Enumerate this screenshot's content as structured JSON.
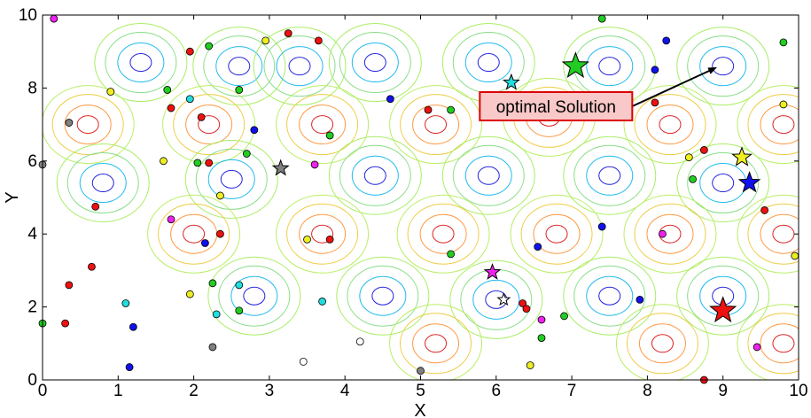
{
  "chart_data": {
    "type": "scatter",
    "title": "",
    "xlabel": "X",
    "ylabel": "Y",
    "xlim": [
      0,
      10
    ],
    "ylim": [
      0,
      10
    ],
    "xticks": [
      "0",
      "1",
      "2",
      "3",
      "4",
      "5",
      "6",
      "7",
      "8",
      "9",
      "10"
    ],
    "yticks": [
      "0",
      "2",
      "4",
      "6",
      "8",
      "10"
    ],
    "grid": false,
    "background": "contour-map",
    "annotation": {
      "text": "optimal Solution",
      "arrow_from": [
        7.8,
        7.5
      ],
      "arrow_to": [
        8.9,
        8.55
      ],
      "box_fill": "#f9c8c8",
      "box_edge": "#dd0000"
    },
    "contour_centers": [
      {
        "x": 1.3,
        "y": 8.7,
        "level": "low"
      },
      {
        "x": 2.6,
        "y": 8.6,
        "level": "low"
      },
      {
        "x": 3.4,
        "y": 8.6,
        "level": "low"
      },
      {
        "x": 4.4,
        "y": 8.7,
        "level": "low"
      },
      {
        "x": 5.9,
        "y": 8.7,
        "level": "low"
      },
      {
        "x": 7.5,
        "y": 8.6,
        "level": "low"
      },
      {
        "x": 9.0,
        "y": 8.6,
        "level": "low"
      },
      {
        "x": 0.6,
        "y": 7.0,
        "level": "high"
      },
      {
        "x": 2.2,
        "y": 7.0,
        "level": "high"
      },
      {
        "x": 3.7,
        "y": 7.0,
        "level": "high"
      },
      {
        "x": 5.2,
        "y": 7.0,
        "level": "high"
      },
      {
        "x": 6.7,
        "y": 7.2,
        "level": "high"
      },
      {
        "x": 8.3,
        "y": 7.0,
        "level": "high"
      },
      {
        "x": 9.8,
        "y": 7.0,
        "level": "high"
      },
      {
        "x": 0.8,
        "y": 5.4,
        "level": "low"
      },
      {
        "x": 2.5,
        "y": 5.5,
        "level": "low"
      },
      {
        "x": 4.4,
        "y": 5.6,
        "level": "low"
      },
      {
        "x": 5.9,
        "y": 5.6,
        "level": "low"
      },
      {
        "x": 7.5,
        "y": 5.6,
        "level": "low"
      },
      {
        "x": 9.0,
        "y": 5.4,
        "level": "low"
      },
      {
        "x": 2.0,
        "y": 4.0,
        "level": "high"
      },
      {
        "x": 3.7,
        "y": 4.0,
        "level": "high"
      },
      {
        "x": 5.3,
        "y": 4.0,
        "level": "high"
      },
      {
        "x": 6.8,
        "y": 4.0,
        "level": "high"
      },
      {
        "x": 8.3,
        "y": 4.0,
        "level": "high"
      },
      {
        "x": 9.8,
        "y": 4.0,
        "level": "high"
      },
      {
        "x": 2.8,
        "y": 2.3,
        "level": "low"
      },
      {
        "x": 4.5,
        "y": 2.3,
        "level": "low"
      },
      {
        "x": 6.0,
        "y": 2.2,
        "level": "low"
      },
      {
        "x": 7.5,
        "y": 2.3,
        "level": "low"
      },
      {
        "x": 9.0,
        "y": 2.3,
        "level": "low"
      },
      {
        "x": 5.2,
        "y": 1.0,
        "level": "high"
      },
      {
        "x": 8.2,
        "y": 1.0,
        "level": "high"
      },
      {
        "x": 9.8,
        "y": 1.0,
        "level": "high"
      }
    ],
    "stars": [
      {
        "x": 7.05,
        "y": 8.6,
        "color": "#22cc22",
        "size": 15
      },
      {
        "x": 6.2,
        "y": 8.15,
        "color": "#22dddd",
        "size": 9
      },
      {
        "x": 3.15,
        "y": 5.8,
        "color": "#808080",
        "size": 9
      },
      {
        "x": 9.25,
        "y": 6.1,
        "color": "#eeee22",
        "size": 11
      },
      {
        "x": 9.35,
        "y": 5.4,
        "color": "#1111ee",
        "size": 12
      },
      {
        "x": 5.95,
        "y": 2.95,
        "color": "#ee22ee",
        "size": 9
      },
      {
        "x": 6.1,
        "y": 2.2,
        "color": "#ffffff",
        "size": 7
      },
      {
        "x": 9.0,
        "y": 1.9,
        "color": "#ee1111",
        "size": 15
      }
    ],
    "points": [
      {
        "x": 0.15,
        "y": 9.9,
        "color": "#ee22ee"
      },
      {
        "x": 1.95,
        "y": 9.0,
        "color": "#ee1111"
      },
      {
        "x": 2.2,
        "y": 9.15,
        "color": "#22cc22"
      },
      {
        "x": 2.95,
        "y": 9.3,
        "color": "#eeee22"
      },
      {
        "x": 3.25,
        "y": 9.5,
        "color": "#ee1111"
      },
      {
        "x": 3.65,
        "y": 9.3,
        "color": "#ee1111"
      },
      {
        "x": 7.4,
        "y": 9.9,
        "color": "#22cc22"
      },
      {
        "x": 8.25,
        "y": 9.3,
        "color": "#1111ee"
      },
      {
        "x": 9.8,
        "y": 9.25,
        "color": "#22cc22"
      },
      {
        "x": 0.9,
        "y": 7.9,
        "color": "#eeee22"
      },
      {
        "x": 1.65,
        "y": 7.95,
        "color": "#22cc22"
      },
      {
        "x": 1.95,
        "y": 7.7,
        "color": "#22dddd"
      },
      {
        "x": 2.6,
        "y": 7.95,
        "color": "#22cc22"
      },
      {
        "x": 8.1,
        "y": 8.5,
        "color": "#1111ee"
      },
      {
        "x": 0.35,
        "y": 7.05,
        "color": "#808080"
      },
      {
        "x": 1.7,
        "y": 7.45,
        "color": "#ee1111"
      },
      {
        "x": 2.1,
        "y": 7.2,
        "color": "#ee1111"
      },
      {
        "x": 2.8,
        "y": 6.85,
        "color": "#1111ee"
      },
      {
        "x": 3.8,
        "y": 6.7,
        "color": "#22cc22"
      },
      {
        "x": 4.6,
        "y": 7.7,
        "color": "#1111ee"
      },
      {
        "x": 5.1,
        "y": 7.4,
        "color": "#ee1111"
      },
      {
        "x": 5.4,
        "y": 7.4,
        "color": "#22cc22"
      },
      {
        "x": 8.1,
        "y": 7.6,
        "color": "#ee1111"
      },
      {
        "x": 9.8,
        "y": 7.55,
        "color": "#eeee22"
      },
      {
        "x": 0.0,
        "y": 5.9,
        "color": "#808080"
      },
      {
        "x": 1.6,
        "y": 6.0,
        "color": "#eeee22"
      },
      {
        "x": 2.05,
        "y": 5.95,
        "color": "#22cc22"
      },
      {
        "x": 2.2,
        "y": 5.95,
        "color": "#ee1111"
      },
      {
        "x": 2.7,
        "y": 6.2,
        "color": "#22cc22"
      },
      {
        "x": 3.6,
        "y": 5.9,
        "color": "#ee22ee"
      },
      {
        "x": 2.35,
        "y": 5.05,
        "color": "#eeee22"
      },
      {
        "x": 8.55,
        "y": 6.1,
        "color": "#eeee22"
      },
      {
        "x": 8.75,
        "y": 6.3,
        "color": "#ee1111"
      },
      {
        "x": 8.6,
        "y": 5.5,
        "color": "#22cc22"
      },
      {
        "x": 0.7,
        "y": 4.75,
        "color": "#ee1111"
      },
      {
        "x": 1.7,
        "y": 4.4,
        "color": "#ee22ee"
      },
      {
        "x": 2.15,
        "y": 3.75,
        "color": "#1111ee"
      },
      {
        "x": 2.35,
        "y": 4.0,
        "color": "#ee1111"
      },
      {
        "x": 3.5,
        "y": 3.85,
        "color": "#eeee22"
      },
      {
        "x": 3.8,
        "y": 3.85,
        "color": "#ee1111"
      },
      {
        "x": 5.4,
        "y": 3.45,
        "color": "#22cc22"
      },
      {
        "x": 6.55,
        "y": 3.65,
        "color": "#1111ee"
      },
      {
        "x": 7.4,
        "y": 4.2,
        "color": "#1111ee"
      },
      {
        "x": 8.2,
        "y": 4.0,
        "color": "#ee22ee"
      },
      {
        "x": 9.55,
        "y": 4.65,
        "color": "#ee1111"
      },
      {
        "x": 9.95,
        "y": 3.4,
        "color": "#eeee22"
      },
      {
        "x": 0.65,
        "y": 3.1,
        "color": "#ee1111"
      },
      {
        "x": 0.35,
        "y": 2.6,
        "color": "#ee1111"
      },
      {
        "x": 1.1,
        "y": 2.1,
        "color": "#22dddd"
      },
      {
        "x": 1.95,
        "y": 2.35,
        "color": "#eeee22"
      },
      {
        "x": 2.25,
        "y": 2.65,
        "color": "#22cc22"
      },
      {
        "x": 2.6,
        "y": 2.6,
        "color": "#22dddd"
      },
      {
        "x": 2.3,
        "y": 1.8,
        "color": "#22dddd"
      },
      {
        "x": 2.6,
        "y": 1.9,
        "color": "#22cc22"
      },
      {
        "x": 3.7,
        "y": 2.15,
        "color": "#22dddd"
      },
      {
        "x": 6.35,
        "y": 2.1,
        "color": "#ee1111"
      },
      {
        "x": 6.4,
        "y": 1.95,
        "color": "#ee1111"
      },
      {
        "x": 6.6,
        "y": 1.65,
        "color": "#ee22ee"
      },
      {
        "x": 6.9,
        "y": 1.75,
        "color": "#22cc22"
      },
      {
        "x": 7.9,
        "y": 2.2,
        "color": "#1111ee"
      },
      {
        "x": 0.0,
        "y": 1.55,
        "color": "#22cc22"
      },
      {
        "x": 0.3,
        "y": 1.55,
        "color": "#ee1111"
      },
      {
        "x": 1.2,
        "y": 1.45,
        "color": "#1111ee"
      },
      {
        "x": 2.25,
        "y": 0.9,
        "color": "#808080"
      },
      {
        "x": 4.2,
        "y": 1.05,
        "color": "#ffffff"
      },
      {
        "x": 3.45,
        "y": 0.5,
        "color": "#ffffff"
      },
      {
        "x": 1.15,
        "y": 0.35,
        "color": "#1111ee"
      },
      {
        "x": 5.0,
        "y": 0.25,
        "color": "#808080"
      },
      {
        "x": 6.6,
        "y": 1.15,
        "color": "#22cc22"
      },
      {
        "x": 6.45,
        "y": 0.4,
        "color": "#eeee22"
      },
      {
        "x": 8.75,
        "y": 0.0,
        "color": "#ee1111"
      },
      {
        "x": 9.45,
        "y": 0.9,
        "color": "#ee22ee"
      }
    ]
  }
}
